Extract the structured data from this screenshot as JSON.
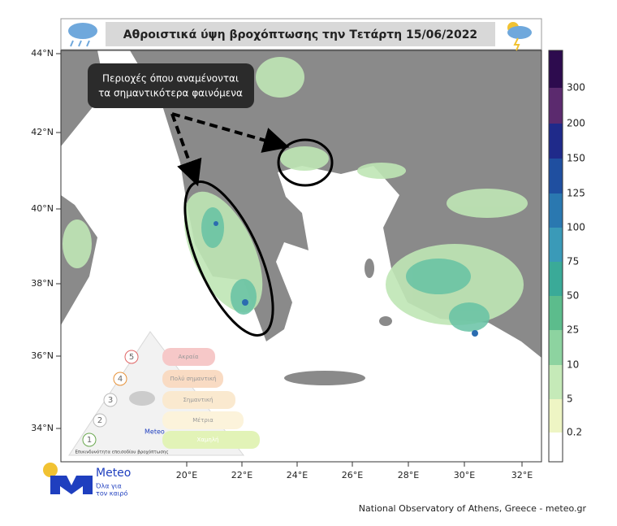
{
  "header": {
    "title": "Αθροιστικά ύψη βροχόπτωσης την Τετάρτη 15/06/2022"
  },
  "callout": {
    "lines": [
      "Περιοχές όπου αναμένονται",
      "τα σημαντικότερα φαινόμενα"
    ]
  },
  "map": {
    "lat_labels": [
      "44°N",
      "42°N",
      "40°N",
      "38°N",
      "36°N",
      "34°N"
    ],
    "lon_labels": [
      "20°E",
      "22°E",
      "24°E",
      "26°E",
      "28°E",
      "30°E",
      "32°E"
    ]
  },
  "colorbar": {
    "labels": [
      "300",
      "200",
      "150",
      "125",
      "100",
      "75",
      "50",
      "25",
      "10",
      "5",
      "0.2"
    ]
  },
  "risk_legend": {
    "levels": [
      {
        "number": "5",
        "label": "Ακραία"
      },
      {
        "number": "4",
        "label": "Πολύ σημαντική"
      },
      {
        "number": "3",
        "label": "Σημαντική"
      },
      {
        "number": "2",
        "label": "Μέτρια"
      },
      {
        "number": "1",
        "label": "Χαμηλή"
      }
    ],
    "brand": "Meteo",
    "caption": "Επικινδυνότητα επεισοδίου βροχόπτωσης"
  },
  "logo": {
    "name": "Meteo",
    "tagline": [
      "Όλα για",
      "τον καιρό"
    ]
  },
  "footer": {
    "credit": "National Observatory of Athens, Greece - meteo.gr"
  }
}
